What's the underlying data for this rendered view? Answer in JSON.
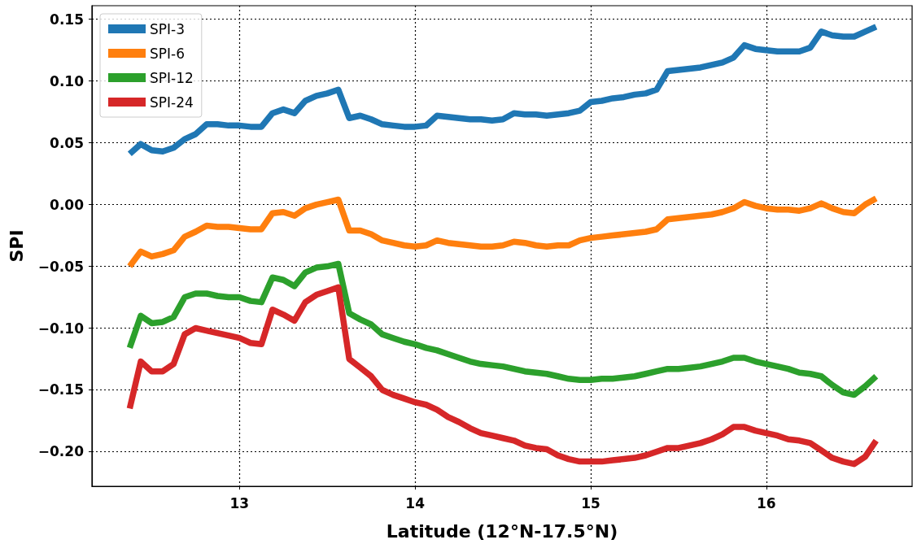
{
  "chart_data": {
    "type": "line",
    "xlabel": "Latitude (12°N-17.5°N)",
    "ylabel": "SPI",
    "x": [
      12.375,
      12.438,
      12.5,
      12.563,
      12.625,
      12.688,
      12.75,
      12.813,
      12.875,
      12.938,
      13.0,
      13.063,
      13.125,
      13.188,
      13.25,
      13.313,
      13.375,
      13.438,
      13.5,
      13.563,
      13.625,
      13.688,
      13.75,
      13.813,
      13.875,
      13.938,
      14.0,
      14.063,
      14.125,
      14.188,
      14.25,
      14.313,
      14.375,
      14.438,
      14.5,
      14.563,
      14.625,
      14.688,
      14.75,
      14.813,
      14.875,
      14.938,
      15.0,
      15.063,
      15.125,
      15.188,
      15.25,
      15.313,
      15.375,
      15.438,
      15.5,
      15.563,
      15.625,
      15.688,
      15.75,
      15.813,
      15.875,
      15.938,
      16.0,
      16.063,
      16.125,
      16.188,
      16.25,
      16.313,
      16.375,
      16.438,
      16.5,
      16.563,
      16.625
    ],
    "series": [
      {
        "name": "SPI-3",
        "color": "#1f77b4",
        "values": [
          0.041,
          0.049,
          0.044,
          0.043,
          0.046,
          0.053,
          0.057,
          0.065,
          0.065,
          0.064,
          0.064,
          0.063,
          0.063,
          0.074,
          0.077,
          0.074,
          0.084,
          0.088,
          0.09,
          0.093,
          0.07,
          0.072,
          0.069,
          0.065,
          0.064,
          0.063,
          0.063,
          0.064,
          0.072,
          0.071,
          0.07,
          0.069,
          0.069,
          0.068,
          0.069,
          0.074,
          0.073,
          0.073,
          0.072,
          0.073,
          0.074,
          0.076,
          0.083,
          0.084,
          0.086,
          0.087,
          0.089,
          0.09,
          0.093,
          0.108,
          0.109,
          0.11,
          0.111,
          0.113,
          0.115,
          0.119,
          0.129,
          0.126,
          0.125,
          0.124,
          0.124,
          0.124,
          0.127,
          0.14,
          0.137,
          0.136,
          0.136,
          0.14,
          0.144
        ]
      },
      {
        "name": "SPI-6",
        "color": "#ff7f0e",
        "values": [
          -0.05,
          -0.038,
          -0.042,
          -0.04,
          -0.037,
          -0.026,
          -0.022,
          -0.017,
          -0.018,
          -0.018,
          -0.019,
          -0.02,
          -0.02,
          -0.007,
          -0.006,
          -0.009,
          -0.003,
          0.0,
          0.002,
          0.004,
          -0.021,
          -0.021,
          -0.024,
          -0.029,
          -0.031,
          -0.033,
          -0.034,
          -0.033,
          -0.029,
          -0.031,
          -0.032,
          -0.033,
          -0.034,
          -0.034,
          -0.033,
          -0.03,
          -0.031,
          -0.033,
          -0.034,
          -0.033,
          -0.033,
          -0.029,
          -0.027,
          -0.026,
          -0.025,
          -0.024,
          -0.023,
          -0.022,
          -0.02,
          -0.012,
          -0.011,
          -0.01,
          -0.009,
          -0.008,
          -0.006,
          -0.003,
          0.002,
          -0.001,
          -0.003,
          -0.004,
          -0.004,
          -0.005,
          -0.003,
          0.001,
          -0.003,
          -0.006,
          -0.007,
          0.0,
          0.005
        ]
      },
      {
        "name": "SPI-12",
        "color": "#2ca02c",
        "values": [
          -0.116,
          -0.09,
          -0.096,
          -0.095,
          -0.091,
          -0.075,
          -0.072,
          -0.072,
          -0.074,
          -0.075,
          -0.075,
          -0.078,
          -0.079,
          -0.059,
          -0.061,
          -0.066,
          -0.055,
          -0.051,
          -0.05,
          -0.048,
          -0.088,
          -0.093,
          -0.097,
          -0.105,
          -0.108,
          -0.111,
          -0.113,
          -0.116,
          -0.118,
          -0.121,
          -0.124,
          -0.127,
          -0.129,
          -0.13,
          -0.131,
          -0.133,
          -0.135,
          -0.136,
          -0.137,
          -0.139,
          -0.141,
          -0.142,
          -0.142,
          -0.141,
          -0.141,
          -0.14,
          -0.139,
          -0.137,
          -0.135,
          -0.133,
          -0.133,
          -0.132,
          -0.131,
          -0.129,
          -0.127,
          -0.124,
          -0.124,
          -0.127,
          -0.129,
          -0.131,
          -0.133,
          -0.136,
          -0.137,
          -0.139,
          -0.146,
          -0.152,
          -0.154,
          -0.147,
          -0.139
        ]
      },
      {
        "name": "SPI-24",
        "color": "#d62728",
        "values": [
          -0.165,
          -0.127,
          -0.135,
          -0.135,
          -0.129,
          -0.105,
          -0.1,
          -0.102,
          -0.104,
          -0.106,
          -0.108,
          -0.112,
          -0.113,
          -0.085,
          -0.089,
          -0.094,
          -0.079,
          -0.073,
          -0.07,
          -0.067,
          -0.125,
          -0.132,
          -0.139,
          -0.15,
          -0.154,
          -0.157,
          -0.16,
          -0.162,
          -0.166,
          -0.172,
          -0.176,
          -0.181,
          -0.185,
          -0.187,
          -0.189,
          -0.191,
          -0.195,
          -0.197,
          -0.198,
          -0.203,
          -0.206,
          -0.208,
          -0.208,
          -0.208,
          -0.207,
          -0.206,
          -0.205,
          -0.203,
          -0.2,
          -0.197,
          -0.197,
          -0.195,
          -0.193,
          -0.19,
          -0.186,
          -0.18,
          -0.18,
          -0.183,
          -0.185,
          -0.187,
          -0.19,
          -0.191,
          -0.193,
          -0.199,
          -0.205,
          -0.208,
          -0.21,
          -0.204,
          -0.191
        ]
      }
    ],
    "xlim": [
      12.16,
      16.83
    ],
    "xticks": [
      13,
      14,
      15,
      16
    ],
    "ylim": [
      -0.228,
      0.161
    ],
    "yticks": [
      {
        "value": -0.2,
        "label": "−0.20"
      },
      {
        "value": -0.15,
        "label": "−0.15"
      },
      {
        "value": -0.1,
        "label": "−0.10"
      },
      {
        "value": -0.05,
        "label": "−0.05"
      },
      {
        "value": 0,
        "label": "0.00"
      },
      0.05,
      {
        "value": 0.1,
        "label": "0.10"
      },
      0.15
    ],
    "grid": true,
    "legend": "top left",
    "marker": "none",
    "line_style": "solid"
  }
}
